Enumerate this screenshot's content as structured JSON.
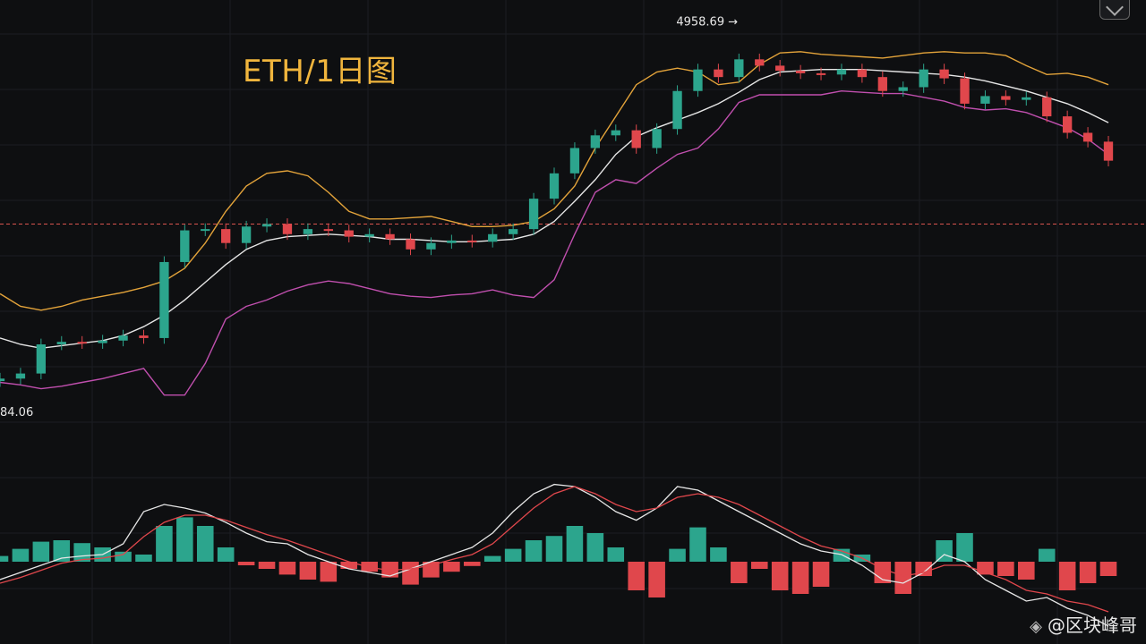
{
  "title": "ETH/1日图",
  "watermark": "@区块峰哥",
  "icons": {
    "watermark": "binance-logo-icon",
    "corner": "expand-icon"
  },
  "colors": {
    "up": "#2ca58d",
    "down": "#e0474c",
    "boll_upper": "#e3a33a",
    "boll_mid": "#e6e6e6",
    "boll_lower": "#c04fae",
    "dif": "#e6e6e6",
    "dea": "#e0474c",
    "ref_line": "#d9534f"
  },
  "chart_data": [
    {
      "type": "candlestick",
      "panel": "price",
      "annotations": {
        "high_label": "4958.69",
        "low_label": "84.06"
      },
      "reference_line": {
        "style": "dashed",
        "value": 3600
      },
      "ylim": [
        2050,
        5100
      ],
      "series": [
        {
          "name": "BOLL UPPER",
          "type": "line",
          "values": [
            3050,
            2950,
            2920,
            2950,
            3000,
            3030,
            3060,
            3100,
            3150,
            3250,
            3450,
            3700,
            3900,
            4000,
            4020,
            3980,
            3850,
            3700,
            3640,
            3640,
            3650,
            3660,
            3620,
            3580,
            3580,
            3590,
            3620,
            3720,
            3900,
            4200,
            4450,
            4700,
            4800,
            4830,
            4800,
            4700,
            4720,
            4860,
            4950,
            4960,
            4940,
            4930,
            4920,
            4910,
            4930,
            4950,
            4960,
            4950,
            4950,
            4930,
            4850,
            4780,
            4790,
            4760,
            4700
          ]
        },
        {
          "name": "BOLL MID",
          "type": "line",
          "values": [
            2700,
            2650,
            2620,
            2640,
            2660,
            2680,
            2720,
            2790,
            2880,
            3000,
            3140,
            3280,
            3400,
            3470,
            3500,
            3510,
            3520,
            3510,
            3500,
            3480,
            3480,
            3470,
            3460,
            3460,
            3470,
            3480,
            3520,
            3620,
            3780,
            3950,
            4150,
            4290,
            4360,
            4420,
            4480,
            4550,
            4640,
            4740,
            4800,
            4810,
            4820,
            4820,
            4820,
            4810,
            4800,
            4790,
            4780,
            4760,
            4730,
            4690,
            4650,
            4600,
            4550,
            4480,
            4400
          ]
        },
        {
          "name": "BOLL LOWER",
          "type": "line",
          "values": [
            2350,
            2330,
            2300,
            2320,
            2350,
            2380,
            2420,
            2460,
            2250,
            2250,
            2500,
            2850,
            2950,
            3000,
            3070,
            3120,
            3150,
            3130,
            3090,
            3050,
            3030,
            3020,
            3040,
            3050,
            3080,
            3040,
            3020,
            3160,
            3520,
            3850,
            3950,
            3920,
            4040,
            4150,
            4200,
            4350,
            4560,
            4620,
            4620,
            4620,
            4620,
            4650,
            4640,
            4630,
            4630,
            4600,
            4570,
            4520,
            4500,
            4510,
            4480,
            4420,
            4360,
            4270,
            4150
          ]
        },
        {
          "name": "CLOSE",
          "type": "line",
          "values": [
            2380,
            2420,
            2650,
            2670,
            2660,
            2680,
            2720,
            2700,
            3300,
            3550,
            3560,
            3450,
            3580,
            3600,
            3520,
            3560,
            3550,
            3500,
            3520,
            3480,
            3400,
            3450,
            3470,
            3460,
            3520,
            3560,
            3800,
            4000,
            4200,
            4300,
            4340,
            4200,
            4350,
            4650,
            4820,
            4760,
            4900,
            4850,
            4810,
            4790,
            4780,
            4820,
            4760,
            4650,
            4680,
            4820,
            4750,
            4550,
            4610,
            4580,
            4600,
            4450,
            4320,
            4250,
            4100
          ]
        }
      ]
    },
    {
      "type": "bar",
      "panel": "macd",
      "series": [
        {
          "name": "MACD HIST",
          "values": [
            8,
            18,
            28,
            30,
            26,
            20,
            14,
            10,
            50,
            62,
            50,
            20,
            -5,
            -10,
            -18,
            -25,
            -28,
            -10,
            -14,
            -22,
            -32,
            -22,
            -14,
            -6,
            8,
            18,
            30,
            36,
            50,
            40,
            20,
            -40,
            -50,
            18,
            48,
            20,
            -30,
            -10,
            -40,
            -45,
            -35,
            18,
            10,
            -30,
            -45,
            -20,
            30,
            40,
            -18,
            -20,
            -25,
            18,
            -40,
            -30,
            -20
          ]
        },
        {
          "name": "DIF",
          "type": "line",
          "values": [
            -25,
            -15,
            -5,
            5,
            8,
            10,
            25,
            70,
            80,
            75,
            68,
            55,
            40,
            28,
            25,
            10,
            0,
            -10,
            -15,
            -20,
            -10,
            0,
            10,
            20,
            40,
            70,
            95,
            108,
            105,
            90,
            70,
            58,
            75,
            105,
            100,
            85,
            70,
            55,
            40,
            25,
            15,
            10,
            -5,
            -25,
            -30,
            -15,
            10,
            0,
            -25,
            -40,
            -55,
            -50,
            -65,
            -75,
            -90
          ]
        },
        {
          "name": "DEA",
          "type": "line",
          "values": [
            -30,
            -22,
            -12,
            -2,
            3,
            5,
            10,
            35,
            55,
            65,
            65,
            58,
            48,
            38,
            30,
            20,
            10,
            0,
            -8,
            -12,
            -10,
            -5,
            3,
            10,
            25,
            50,
            75,
            95,
            105,
            95,
            80,
            70,
            75,
            90,
            95,
            90,
            80,
            65,
            50,
            35,
            22,
            15,
            5,
            -10,
            -20,
            -15,
            -5,
            -5,
            -15,
            -25,
            -40,
            -45,
            -55,
            -60,
            -70
          ]
        }
      ]
    }
  ]
}
